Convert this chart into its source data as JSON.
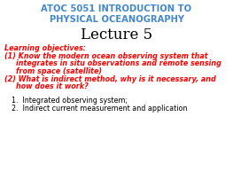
{
  "bg_color": "#ffffff",
  "title_line1": "ATOC 5051 INTRODUCTION TO",
  "title_line2": "PHYSICAL OCEANOGRAPHY",
  "title_color": "#4488cc",
  "lecture_title": "Lecture 5",
  "lecture_color": "#000000",
  "learning_label": "Learning objectives:",
  "learning_color": "#ff0000",
  "objectives_color": "#ff0000",
  "list_color": "#000000",
  "title_fontsize": 7.2,
  "lecture_fontsize": 12,
  "body_fontsize": 5.8
}
